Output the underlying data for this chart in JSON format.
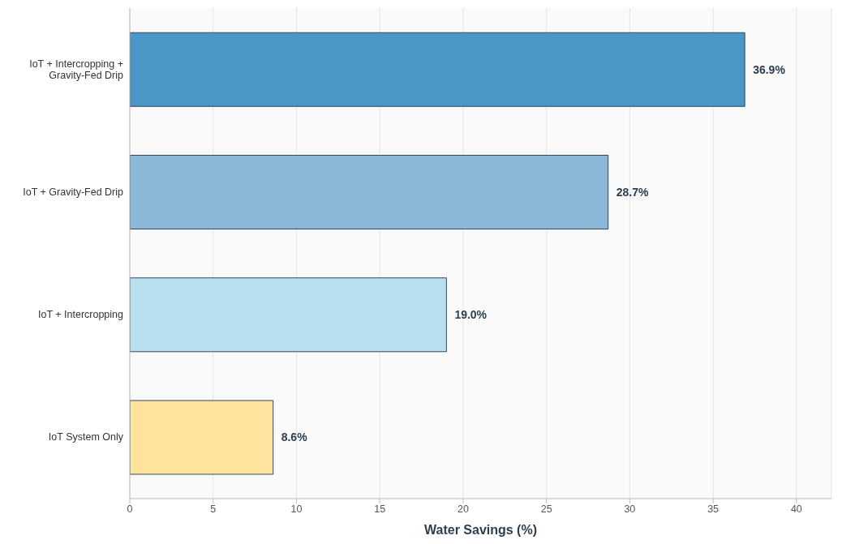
{
  "chart_data": {
    "type": "bar",
    "orientation": "horizontal",
    "xlabel": "Water Savings (%)",
    "categories": [
      "IoT + Intercropping + Gravity-Fed Drip",
      "IoT + Gravity-Fed Drip",
      "IoT + Intercropping",
      "IoT System Only"
    ],
    "values": [
      36.9,
      28.7,
      19.0,
      8.6
    ],
    "colors": [
      "#4a96c6",
      "#8bb8d8",
      "#b8dfed",
      "#fee39d"
    ],
    "value_labels": [
      "36.9%",
      "28.7%",
      "19.0%",
      "8.6%"
    ],
    "xlim": [
      0,
      42.1
    ],
    "xticks": [
      0,
      5,
      10,
      15,
      20,
      25,
      30,
      35,
      40
    ],
    "grid": "x"
  }
}
